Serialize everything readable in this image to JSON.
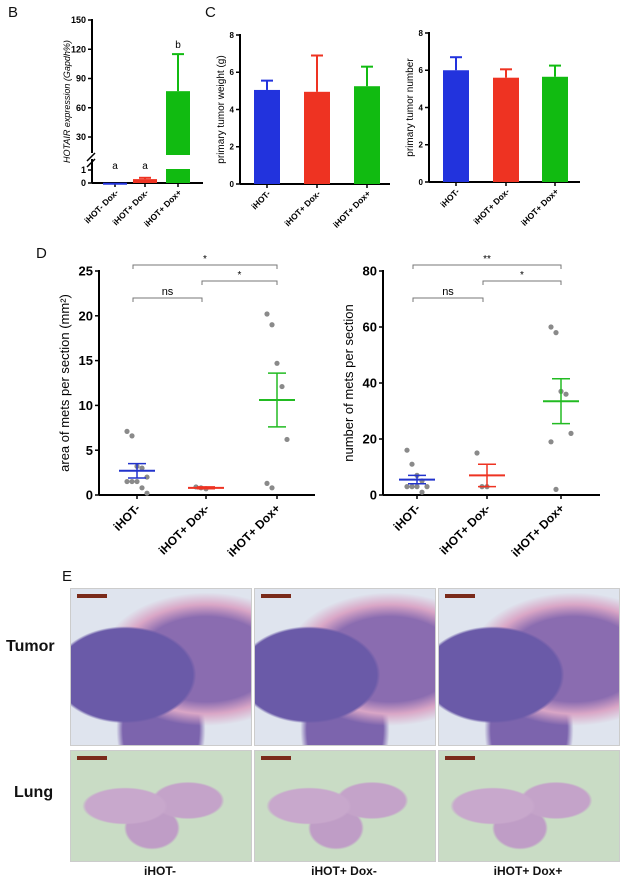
{
  "panel_labels": {
    "B": "B",
    "C": "C",
    "D": "D",
    "E": "E"
  },
  "chart_data": [
    {
      "id": "B",
      "type": "bar",
      "ylabel": "HOTAIR expression (Gapdh%)",
      "categories": [
        "iHOT- Dox-",
        "iHOT+ Dox-",
        "iHOT+ Dox+"
      ],
      "values": [
        0.02,
        0.3,
        77
      ],
      "errors": [
        0,
        0.1,
        38
      ],
      "colors": [
        "#2233dd",
        "#ee3322",
        "#11bb11"
      ],
      "annotations": [
        "a",
        "a",
        "b"
      ],
      "yticks": [
        "0",
        "1",
        "30",
        "60",
        "90",
        "120",
        "150"
      ],
      "axis_break": true,
      "ylim": [
        0,
        150
      ]
    },
    {
      "id": "C1",
      "type": "bar",
      "ylabel": "primary tumor weight  (g)",
      "categories": [
        "iHOT-",
        "iHOT+ Dox-",
        "iHOT+ Dox+"
      ],
      "values": [
        5.05,
        4.95,
        5.25
      ],
      "errors": [
        0.5,
        1.95,
        1.05
      ],
      "colors": [
        "#2233dd",
        "#ee3322",
        "#11bb11"
      ],
      "yticks": [
        "0",
        "2",
        "4",
        "6",
        "8"
      ],
      "ylim": [
        0,
        8
      ]
    },
    {
      "id": "C2",
      "type": "bar",
      "ylabel": "primary tumor number",
      "categories": [
        "iHOT-",
        "iHOT+ Dox-",
        "iHOT+ Dox+"
      ],
      "values": [
        6.0,
        5.6,
        5.65
      ],
      "errors": [
        0.7,
        0.45,
        0.6
      ],
      "colors": [
        "#2233dd",
        "#ee3322",
        "#11bb11"
      ],
      "yticks": [
        "0",
        "2",
        "4",
        "6",
        "8"
      ],
      "ylim": [
        0,
        8
      ]
    },
    {
      "id": "D1",
      "type": "scatter",
      "ylabel": "area of mets per section (mm²)",
      "categories": [
        "iHOT-",
        "iHOT+ Dox-",
        "iHOT+ Dox+"
      ],
      "points": [
        [
          7.1,
          6.6,
          3.2,
          3.0,
          2.0,
          1.5,
          1.5,
          1.5,
          0.8,
          0.2
        ],
        [
          0.9,
          0.8,
          0.7
        ],
        [
          20.2,
          19.0,
          14.7,
          12.1,
          6.2,
          1.3,
          0.8
        ]
      ],
      "means": [
        2.7,
        0.8,
        10.6
      ],
      "sems": [
        0.8,
        0.1,
        3.0
      ],
      "colors": [
        "#2233cc",
        "#ee3322",
        "#22bb22"
      ],
      "yticks": [
        "0",
        "5",
        "10",
        "15",
        "20",
        "25"
      ],
      "ylim": [
        0,
        25
      ],
      "comparisons": [
        {
          "a": 0,
          "b": 1,
          "label": "ns"
        },
        {
          "a": 1,
          "b": 2,
          "label": "*"
        },
        {
          "a": 0,
          "b": 2,
          "label": "*"
        }
      ]
    },
    {
      "id": "D2",
      "type": "scatter",
      "ylabel": "number of mets per section",
      "categories": [
        "iHOT-",
        "iHOT+ Dox-",
        "iHOT+ Dox+"
      ],
      "points": [
        [
          16,
          11,
          7,
          5,
          3,
          3,
          3,
          3,
          1
        ],
        [
          15,
          3,
          3
        ],
        [
          60,
          58,
          37,
          36,
          22,
          19,
          2
        ]
      ],
      "means": [
        5.5,
        7,
        33.5
      ],
      "sems": [
        1.5,
        4,
        8
      ],
      "colors": [
        "#2233cc",
        "#ee3322",
        "#22bb22"
      ],
      "yticks": [
        "0",
        "20",
        "40",
        "60",
        "80"
      ],
      "ylim": [
        0,
        80
      ],
      "comparisons": [
        {
          "a": 0,
          "b": 1,
          "label": "ns"
        },
        {
          "a": 1,
          "b": 2,
          "label": "*"
        },
        {
          "a": 0,
          "b": 2,
          "label": "**"
        }
      ]
    }
  ],
  "panel_E": {
    "rows": [
      "Tumor",
      "Lung"
    ],
    "columns": [
      "iHOT-",
      "iHOT+ Dox-",
      "iHOT+ Dox+"
    ]
  }
}
